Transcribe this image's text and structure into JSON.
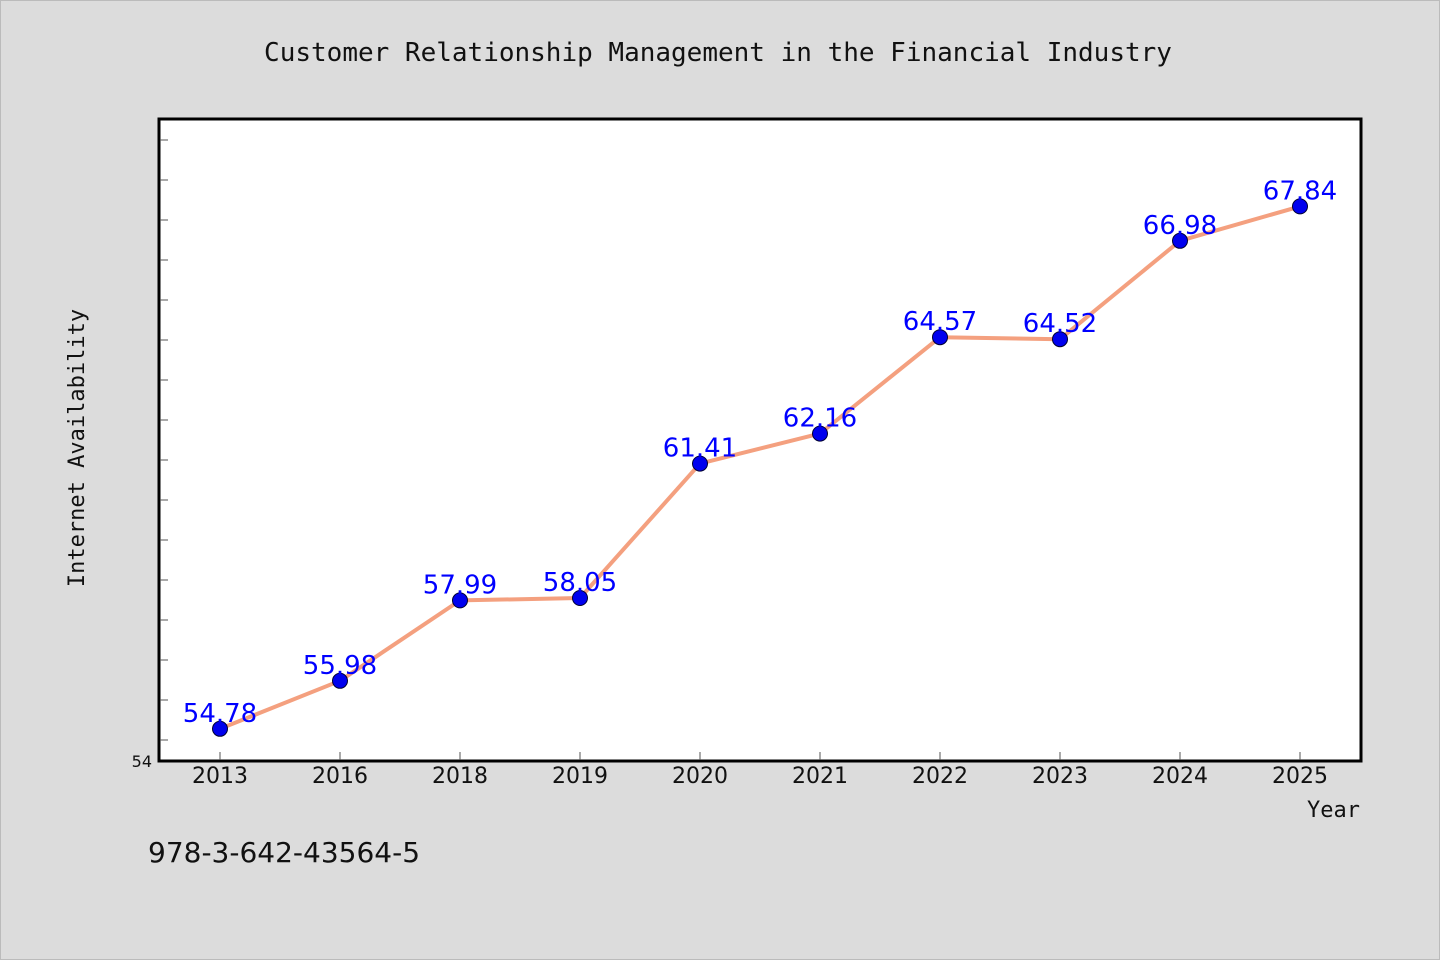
{
  "chart_data": {
    "type": "line",
    "title": "Customer Relationship Management in the Financial Industry",
    "xlabel": "Year",
    "ylabel": "Internet Availability",
    "categories": [
      "2013",
      "2016",
      "2018",
      "2019",
      "2020",
      "2021",
      "2022",
      "2023",
      "2024",
      "2025"
    ],
    "values": [
      54.78,
      55.98,
      57.99,
      58.05,
      61.41,
      62.16,
      64.57,
      64.52,
      66.98,
      67.84
    ],
    "data_labels": [
      "54.78",
      "55.98",
      "57.99",
      "58.05",
      "61.41",
      "62.16",
      "64.57",
      "64.52",
      "66.98",
      "67.84"
    ],
    "ylim": [
      54,
      70
    ],
    "y_tick_labels": [
      "54"
    ],
    "grid": false,
    "legend": "none",
    "colors": {
      "line": "#f4a07f",
      "marker": "#0000ee",
      "data_label": "#0000ff",
      "background": "#dcdcdc",
      "plot_background": "#ffffff"
    }
  },
  "footnote": "978-3-642-43564-5"
}
